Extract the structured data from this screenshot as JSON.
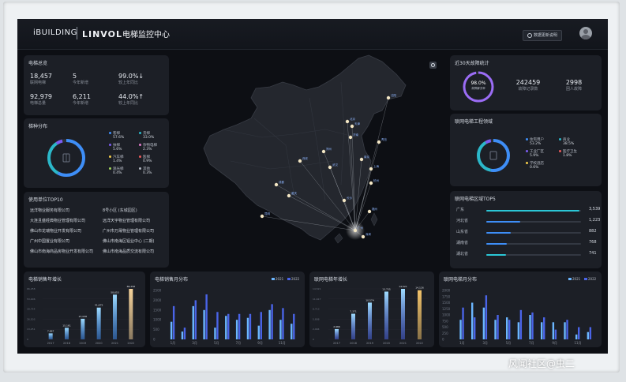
{
  "header": {
    "logo": "iBUILDING",
    "brand": "LINVOL",
    "title": "电梯监控中心",
    "update_button": "数据更新说明"
  },
  "overview": {
    "title": "电梯总览",
    "stats": [
      {
        "value": "18,457",
        "label": "联网电梯"
      },
      {
        "value": "5",
        "label": "今年新增"
      },
      {
        "value": "99.0%↓",
        "label": "较上年同比"
      },
      {
        "value": "92,979",
        "label": "电梯总量"
      },
      {
        "value": "6,211",
        "label": "今年新增"
      },
      {
        "value": "44.0%↑",
        "label": "较上年同比"
      }
    ]
  },
  "distribution": {
    "title": "梯种分布",
    "center_icon": "elevator-icon",
    "items": [
      {
        "name": "客梯",
        "pct": "57.6%",
        "color": "#3e8ef7"
      },
      {
        "name": "货梯",
        "pct": "33.0%",
        "color": "#2bb7c9"
      },
      {
        "name": "扶梯",
        "pct": "5.6%",
        "color": "#7b5cf0"
      },
      {
        "name": "杂物电梯",
        "pct": "2.3%",
        "color": "#e07ac8"
      },
      {
        "name": "汽车梯",
        "pct": "1.4%",
        "color": "#f0c94a"
      },
      {
        "name": "医梯",
        "pct": "0.9%",
        "color": "#e85a5a"
      },
      {
        "name": "观光梯",
        "pct": "0.4%",
        "color": "#9fd35a"
      },
      {
        "name": "其他",
        "pct": "0.3%",
        "color": "#b0b6c0"
      }
    ]
  },
  "top10": {
    "title": "使用单位TOP10",
    "rows": [
      [
        "远洋物业服务有限公司",
        "8号小区 (东城园区)"
      ],
      [
        "大连且盛经典物业管理有限公司",
        "远洋天宇物业管理有限公司"
      ],
      [
        "佛山市龙瑞物业开发有限公司",
        "广州市万晟物业管理有限公司"
      ],
      [
        "广州中国置业有限公司",
        "佛山市南海区铝业中心 (二期)"
      ],
      [
        "佛山市南海商品房物业开发有限公司",
        "佛山市南海品质交流有限公司"
      ]
    ]
  },
  "faults30": {
    "title": "近30天故障统计",
    "ring_value": "98.0%",
    "ring_label": "故障解决率",
    "stats": [
      {
        "value": "242459",
        "label": "故障记录数"
      },
      {
        "value": "2998",
        "label": "困人故障"
      }
    ]
  },
  "engineering": {
    "title": "联网电梯工程领域",
    "items": [
      {
        "name": "住宅用户",
        "pct": "53.2%",
        "color": "#3e8ef7"
      },
      {
        "name": "商业",
        "pct": "38.5%",
        "color": "#2bb7c9"
      },
      {
        "name": "工业厂区",
        "pct": "5.9%",
        "color": "#7b5cf0"
      },
      {
        "name": "医疗卫生",
        "pct": "1.8%",
        "color": "#e85a5a"
      },
      {
        "name": "学校酒店",
        "pct": "0.6%",
        "color": "#f0c94a"
      }
    ]
  },
  "regions": {
    "title": "联网电梯区域TOP5",
    "rows": [
      {
        "name": "广东",
        "value": "3,539",
        "ratio": 0.98,
        "color": "#2bc6d6"
      },
      {
        "name": "河北省",
        "value": "1,223",
        "ratio": 0.36,
        "color": "#3e8ef7"
      },
      {
        "name": "山东省",
        "value": "882",
        "ratio": 0.26,
        "color": "#3e8ef7"
      },
      {
        "name": "湖南省",
        "value": "768",
        "ratio": 0.22,
        "color": "#3e8ef7"
      },
      {
        "name": "湖北省",
        "value": "741",
        "ratio": 0.21,
        "color": "#2bc6d6"
      }
    ]
  },
  "map": {
    "search_icon": "search-icon",
    "cities": [
      "广州",
      "北京",
      "上海",
      "深圳",
      "成都",
      "武汉",
      "杭州",
      "西安",
      "重庆",
      "南京",
      "长沙",
      "郑州",
      "济南",
      "青岛",
      "天津",
      "沈阳",
      "昆明",
      "福州"
    ]
  },
  "bottom_charts": [
    {
      "title": "电梯销售年增长",
      "chart_data": {
        "type": "bar",
        "categories": [
          "2017",
          "2018",
          "2019",
          "2020",
          "2021",
          "2022"
        ],
        "values": [
          7867,
          15161,
          27038,
          41675,
          58653,
          66258
        ],
        "data_labels": [
          "7,867",
          "15,161",
          "27,038",
          "41,675",
          "58,653",
          "66,258"
        ],
        "y_ticks": [
          "66,258",
          "53,006",
          "39,754",
          "26,503",
          "13,251",
          "0"
        ],
        "ylim": [
          0,
          66258
        ]
      }
    },
    {
      "title": "电梯销售月分布",
      "chart_data": {
        "type": "bar",
        "categories": [
          "1月",
          "2月",
          "3月",
          "4月",
          "5月",
          "6月",
          "7月",
          "8月",
          "9月",
          "10月",
          "11月",
          "12月"
        ],
        "x_tick_labels": [
          "1月",
          "3月",
          "5月",
          "7月",
          "9月",
          "11月"
        ],
        "series": [
          {
            "name": "2021",
            "values": [
              900,
              400,
              1700,
              1500,
              600,
              1200,
              1000,
              1100,
              700,
              1500,
              1000,
              800
            ]
          },
          {
            "name": "2022",
            "values": [
              1700,
              600,
              2000,
              2300,
              1400,
              1300,
              1300,
              1300,
              1400,
              1800,
              1600,
              1300
            ]
          }
        ],
        "y_ticks": [
          "2500",
          "2000",
          "1500",
          "1000",
          "500",
          "0"
        ],
        "ylim": [
          0,
          2500
        ],
        "legend": "top-right"
      }
    },
    {
      "title": "联网电梯年增长",
      "chart_data": {
        "type": "bar",
        "categories": [
          "2017",
          "2018",
          "2019",
          "2020",
          "2021",
          "2022"
        ],
        "values": [
          2966,
          7371,
          10574,
          13735,
          14521,
          14126
        ],
        "data_labels": [
          "2,966",
          "7,371",
          "10,574",
          "13,735",
          "14,521",
          "14,126"
        ],
        "y_ticks": [
          "14,521",
          "11,617",
          "8,713",
          "5,808",
          "2,904",
          "0"
        ],
        "ylim": [
          0,
          14521
        ]
      }
    },
    {
      "title": "联网电梯月分布",
      "chart_data": {
        "type": "bar",
        "categories": [
          "1月",
          "2月",
          "3月",
          "4月",
          "5月",
          "6月",
          "7月",
          "8月",
          "9月",
          "10月",
          "11月",
          "12月"
        ],
        "x_tick_labels": [
          "1月",
          "3月",
          "5月",
          "7月",
          "9月",
          "11月"
        ],
        "series": [
          {
            "name": "2021",
            "values": [
              800,
              1500,
              1300,
              800,
              900,
              700,
              1000,
              700,
              700,
              700,
              200,
              300
            ]
          },
          {
            "name": "2022",
            "values": [
              1300,
              900,
              1800,
              1000,
              800,
              1200,
              1100,
              900,
              400,
              800,
              500,
              500
            ]
          }
        ],
        "y_ticks": [
          "2000",
          "1750",
          "1500",
          "1250",
          "1000",
          "750",
          "500",
          "250",
          "0"
        ],
        "ylim": [
          0,
          2000
        ],
        "legend": "top-right"
      }
    }
  ],
  "watermark": "风闻社区@虫二"
}
